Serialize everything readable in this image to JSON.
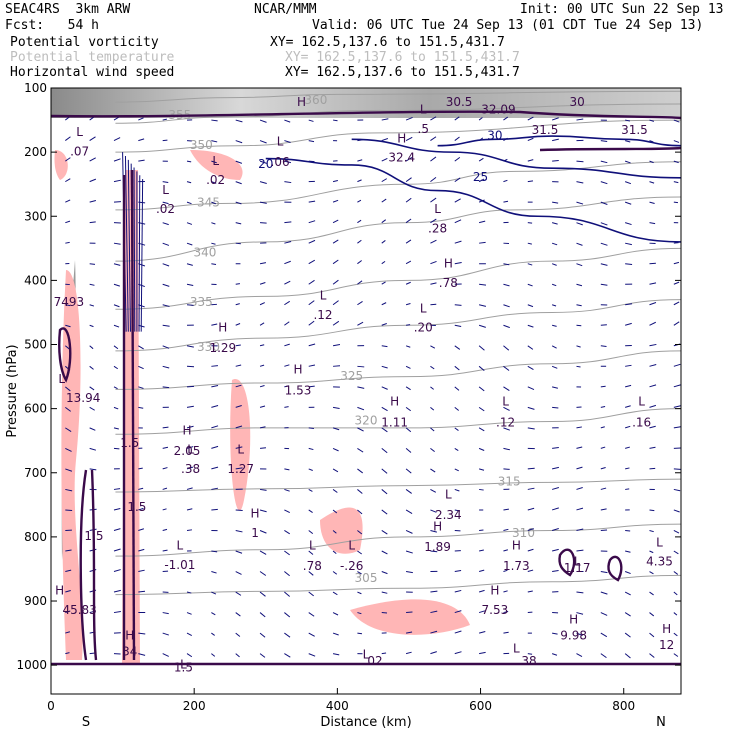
{
  "header": {
    "model": "SEAC4RS  3km ARW",
    "org": "NCAR/MMM",
    "init": "Init: 00 UTC Sun 22 Sep 13",
    "fcst": "Fcst:   54 h",
    "valid": "Valid: 06 UTC Tue 24 Sep 13 (01 CDT Tue 24 Sep 13)",
    "fields": [
      {
        "name": "Potential vorticity",
        "xy": "XY= 162.5,137.6 to 151.5,431.7"
      },
      {
        "name": "Potential temperature",
        "xy": "XY= 162.5,137.6 to 151.5,431.7"
      },
      {
        "name": "Horizontal wind speed",
        "xy": "XY= 162.5,137.6 to 151.5,431.7"
      }
    ]
  },
  "colors": {
    "pv": "#3a0a4a",
    "theta": "#a0a0a0",
    "wind": "#10107a",
    "pv_fill": "#ffb6b6",
    "cloud": "#9a9a9a"
  },
  "chart_data": {
    "type": "cross-section",
    "xlabel": "Distance (km)",
    "ylabel": "Pressure (hPa)",
    "xlim": [
      0,
      880
    ],
    "ylim": [
      1045,
      100
    ],
    "xticks": [
      0,
      200,
      400,
      600,
      800
    ],
    "yticks": [
      100,
      200,
      300,
      400,
      500,
      600,
      700,
      800,
      900,
      1000
    ],
    "end_labels": {
      "left": "S",
      "right": "N"
    },
    "theta_contours": [
      {
        "label": "360",
        "x": 370,
        "p": 125,
        "pts": [
          [
            90,
            122
          ],
          [
            250,
            115
          ],
          [
            400,
            110
          ],
          [
            880,
            105
          ]
        ]
      },
      {
        "label": "355",
        "x": 180,
        "p": 148,
        "pts": [
          [
            90,
            155
          ],
          [
            250,
            145
          ],
          [
            450,
            135
          ],
          [
            880,
            125
          ]
        ]
      },
      {
        "label": "350",
        "x": 210,
        "p": 195,
        "pts": [
          [
            90,
            200
          ],
          [
            260,
            190
          ],
          [
            460,
            170
          ],
          [
            880,
            150
          ]
        ]
      },
      {
        "label": "345",
        "x": 220,
        "p": 285,
        "pts": [
          [
            90,
            290
          ],
          [
            250,
            280
          ],
          [
            500,
            250
          ],
          [
            650,
            230
          ],
          [
            880,
            215
          ]
        ]
      },
      {
        "label": "340",
        "x": 215,
        "p": 363,
        "pts": [
          [
            90,
            370
          ],
          [
            300,
            340
          ],
          [
            500,
            310
          ],
          [
            650,
            290
          ],
          [
            880,
            270
          ]
        ]
      },
      {
        "label": "335",
        "x": 210,
        "p": 440,
        "pts": [
          [
            90,
            445
          ],
          [
            300,
            425
          ],
          [
            500,
            400
          ],
          [
            700,
            370
          ],
          [
            880,
            350
          ]
        ]
      },
      {
        "label": "330",
        "x": 220,
        "p": 510,
        "pts": [
          [
            90,
            510
          ],
          [
            300,
            490
          ],
          [
            500,
            470
          ],
          [
            700,
            450
          ],
          [
            880,
            430
          ]
        ]
      },
      {
        "label": "325",
        "x": 420,
        "p": 555,
        "pts": [
          [
            90,
            570
          ],
          [
            300,
            560
          ],
          [
            500,
            550
          ],
          [
            700,
            530
          ],
          [
            880,
            510
          ]
        ]
      },
      {
        "label": "320",
        "x": 440,
        "p": 625,
        "pts": [
          [
            90,
            640
          ],
          [
            300,
            630
          ],
          [
            500,
            630
          ],
          [
            700,
            620
          ],
          [
            880,
            600
          ]
        ]
      },
      {
        "label": "315",
        "x": 640,
        "p": 720,
        "pts": [
          [
            90,
            730
          ],
          [
            300,
            725
          ],
          [
            500,
            720
          ],
          [
            700,
            715
          ],
          [
            880,
            710
          ]
        ]
      },
      {
        "label": "310",
        "x": 660,
        "p": 800,
        "pts": [
          [
            90,
            830
          ],
          [
            300,
            820
          ],
          [
            500,
            800
          ],
          [
            700,
            790
          ],
          [
            880,
            780
          ]
        ]
      },
      {
        "label": "305",
        "x": 440,
        "p": 870,
        "pts": [
          [
            90,
            890
          ],
          [
            300,
            885
          ],
          [
            500,
            880
          ],
          [
            700,
            870
          ],
          [
            880,
            860
          ]
        ]
      }
    ],
    "wind_contours": [
      {
        "label": "20",
        "x": 300,
        "p": 225,
        "pts": [
          [
            300,
            210
          ],
          [
            420,
            220
          ],
          [
            540,
            260
          ],
          [
            680,
            300
          ],
          [
            880,
            340
          ]
        ]
      },
      {
        "label": "25",
        "x": 600,
        "p": 245,
        "pts": [
          [
            420,
            180
          ],
          [
            560,
            200
          ],
          [
            700,
            225
          ],
          [
            880,
            240
          ]
        ]
      },
      {
        "label": "30",
        "x": 620,
        "p": 180,
        "pts": [
          [
            540,
            190
          ],
          [
            620,
            180
          ],
          [
            700,
            175
          ],
          [
            800,
            180
          ],
          [
            880,
            190
          ]
        ]
      }
    ],
    "pv_labels": [
      {
        "text": "L",
        "x": 40,
        "p": 175
      },
      {
        "text": ".07",
        "x": 40,
        "p": 205
      },
      {
        "text": "L",
        "x": 160,
        "p": 265
      },
      {
        "text": ".02",
        "x": 160,
        "p": 295
      },
      {
        "text": "L",
        "x": 230,
        "p": 220
      },
      {
        "text": ".02",
        "x": 230,
        "p": 250
      },
      {
        "text": "L",
        "x": 320,
        "p": 190
      },
      {
        "text": ".06",
        "x": 320,
        "p": 222
      },
      {
        "text": "H",
        "x": 350,
        "p": 128
      },
      {
        "text": "L",
        "x": 520,
        "p": 140
      },
      {
        "text": ".5",
        "x": 520,
        "p": 170
      },
      {
        "text": "H",
        "x": 490,
        "p": 185
      },
      {
        "text": "32.4",
        "x": 490,
        "p": 215
      },
      {
        "text": "30.5",
        "x": 570,
        "p": 128
      },
      {
        "text": "32.09",
        "x": 625,
        "p": 140
      },
      {
        "text": "31.5",
        "x": 690,
        "p": 172
      },
      {
        "text": "30",
        "x": 735,
        "p": 128
      },
      {
        "text": "31.5",
        "x": 815,
        "p": 172
      },
      {
        "text": "L",
        "x": 540,
        "p": 295
      },
      {
        "text": ".28",
        "x": 540,
        "p": 325
      },
      {
        "text": "H",
        "x": 555,
        "p": 380
      },
      {
        "text": ".78",
        "x": 555,
        "p": 410
      },
      {
        "text": "L",
        "x": 380,
        "p": 430
      },
      {
        "text": ".12",
        "x": 380,
        "p": 460
      },
      {
        "text": "L",
        "x": 520,
        "p": 450
      },
      {
        "text": ".20",
        "x": 520,
        "p": 480
      },
      {
        "text": "H",
        "x": 240,
        "p": 480
      },
      {
        "text": "1.29",
        "x": 240,
        "p": 512
      },
      {
        "text": "H",
        "x": 345,
        "p": 545
      },
      {
        "text": "1.53",
        "x": 345,
        "p": 578
      },
      {
        "text": "H",
        "x": 480,
        "p": 595
      },
      {
        "text": "1.11",
        "x": 480,
        "p": 628
      },
      {
        "text": "L",
        "x": 635,
        "p": 595
      },
      {
        "text": ".12",
        "x": 635,
        "p": 628
      },
      {
        "text": "L",
        "x": 825,
        "p": 595
      },
      {
        "text": ".16",
        "x": 825,
        "p": 628
      },
      {
        "text": "H",
        "x": 190,
        "p": 640
      },
      {
        "text": "2.05",
        "x": 190,
        "p": 672
      },
      {
        "text": "L",
        "x": 195,
        "p": 670
      },
      {
        "text": ".38",
        "x": 195,
        "p": 700
      },
      {
        "text": "L",
        "x": 265,
        "p": 670
      },
      {
        "text": "1.27",
        "x": 265,
        "p": 700
      },
      {
        "text": "L",
        "x": 555,
        "p": 740
      },
      {
        "text": "2.34",
        "x": 555,
        "p": 772
      },
      {
        "text": "H",
        "x": 285,
        "p": 770
      },
      {
        "text": "1",
        "x": 285,
        "p": 800
      },
      {
        "text": "H",
        "x": 540,
        "p": 790
      },
      {
        "text": "1.89",
        "x": 540,
        "p": 822
      },
      {
        "text": "L",
        "x": 365,
        "p": 820
      },
      {
        "text": ".78",
        "x": 365,
        "p": 852
      },
      {
        "text": "L",
        "x": 420,
        "p": 820
      },
      {
        "text": "-.26",
        "x": 420,
        "p": 852
      },
      {
        "text": "L",
        "x": 180,
        "p": 820
      },
      {
        "text": "-1.01",
        "x": 180,
        "p": 850
      },
      {
        "text": "H",
        "x": 650,
        "p": 820
      },
      {
        "text": "1.73",
        "x": 650,
        "p": 852
      },
      {
        "text": "L",
        "x": 735,
        "p": 845
      },
      {
        "text": "1.17",
        "x": 735,
        "p": 855
      },
      {
        "text": "L",
        "x": 850,
        "p": 815
      },
      {
        "text": "4.35",
        "x": 850,
        "p": 845
      },
      {
        "text": "H",
        "x": 620,
        "p": 890
      },
      {
        "text": "7.53",
        "x": 620,
        "p": 920
      },
      {
        "text": "H",
        "x": 730,
        "p": 935
      },
      {
        "text": "9.98",
        "x": 730,
        "p": 960
      },
      {
        "text": "H",
        "x": 860,
        "p": 950
      },
      {
        "text": "12",
        "x": 860,
        "p": 975
      },
      {
        "text": "H",
        "x": 12,
        "p": 890
      },
      {
        "text": "45.83",
        "x": 40,
        "p": 920
      },
      {
        "text": "H",
        "x": 110,
        "p": 960
      },
      {
        "text": "34",
        "x": 110,
        "p": 985
      },
      {
        "text": "1.5",
        "x": 60,
        "p": 805
      },
      {
        "text": "1.5",
        "x": 120,
        "p": 760
      },
      {
        "text": "1.5",
        "x": 110,
        "p": 660
      },
      {
        "text": "7493",
        "x": 25,
        "p": 440
      },
      {
        "text": "L",
        "x": 15,
        "p": 560
      },
      {
        "text": "13.94",
        "x": 45,
        "p": 590
      },
      {
        "text": "L",
        "x": 185,
        "p": 1005
      },
      {
        "text": "1.5",
        "x": 185,
        "p": 1010
      },
      {
        "text": "L",
        "x": 440,
        "p": 990
      },
      {
        "text": ".02",
        "x": 450,
        "p": 1000
      },
      {
        "text": "L",
        "x": 650,
        "p": 980
      },
      {
        "text": ".38",
        "x": 665,
        "p": 1000
      }
    ]
  }
}
